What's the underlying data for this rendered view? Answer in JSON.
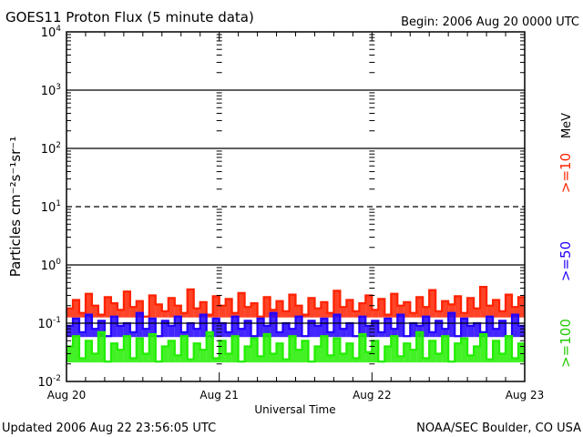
{
  "chart_data": {
    "type": "line",
    "title": "GOES11 Proton Flux (5 minute data)",
    "begin_label": "Begin: 2006 Aug 20 0000 UTC",
    "xlabel": "Universal Time",
    "ylabel": "Particles cm⁻²s⁻¹sr⁻¹",
    "yscale": "log",
    "ylim": [
      0.01,
      10000
    ],
    "xlim_days": [
      0,
      3
    ],
    "y_ticks": [
      {
        "base": "10",
        "exp": "4",
        "value": 10000
      },
      {
        "base": "10",
        "exp": "3",
        "value": 1000
      },
      {
        "base": "10",
        "exp": "2",
        "value": 100
      },
      {
        "base": "10",
        "exp": "1",
        "value": 10
      },
      {
        "base": "10",
        "exp": "0",
        "value": 1
      },
      {
        "base": "10",
        "exp": "-1",
        "value": 0.1
      },
      {
        "base": "10",
        "exp": "-2",
        "value": 0.01
      }
    ],
    "x_ticks": [
      {
        "label": "Aug 20",
        "day": 0
      },
      {
        "label": "Aug 21",
        "day": 1
      },
      {
        "label": "Aug 22",
        "day": 2
      },
      {
        "label": "Aug 23",
        "day": 3
      }
    ],
    "grid": true,
    "legend_placement": "right, vertical",
    "legend_unit": "MeV",
    "x_step_hours": 1,
    "series": [
      {
        "name": ">=10",
        "color": "#ff2200",
        "values": [
          0.18,
          0.25,
          0.15,
          0.32,
          0.2,
          0.14,
          0.28,
          0.22,
          0.17,
          0.35,
          0.19,
          0.24,
          0.13,
          0.3,
          0.21,
          0.16,
          0.27,
          0.2,
          0.15,
          0.38,
          0.18,
          0.23,
          0.14,
          0.29,
          0.2,
          0.26,
          0.15,
          0.33,
          0.19,
          0.22,
          0.13,
          0.28,
          0.17,
          0.24,
          0.16,
          0.31,
          0.2,
          0.14,
          0.27,
          0.18,
          0.23,
          0.15,
          0.36,
          0.19,
          0.25,
          0.16,
          0.22,
          0.3,
          0.17,
          0.26,
          0.14,
          0.32,
          0.2,
          0.23,
          0.15,
          0.28,
          0.19,
          0.37,
          0.16,
          0.24,
          0.21,
          0.29,
          0.15,
          0.27,
          0.18,
          0.42,
          0.2,
          0.25,
          0.16,
          0.31,
          0.19,
          0.28
        ]
      },
      {
        "name": ">=50",
        "color": "#2200ff",
        "values": [
          0.09,
          0.12,
          0.07,
          0.14,
          0.08,
          0.11,
          0.06,
          0.13,
          0.09,
          0.1,
          0.07,
          0.15,
          0.08,
          0.12,
          0.06,
          0.11,
          0.09,
          0.13,
          0.07,
          0.1,
          0.08,
          0.14,
          0.06,
          0.12,
          0.1,
          0.07,
          0.13,
          0.08,
          0.11,
          0.06,
          0.12,
          0.09,
          0.15,
          0.07,
          0.1,
          0.08,
          0.13,
          0.06,
          0.11,
          0.09,
          0.12,
          0.07,
          0.14,
          0.08,
          0.1,
          0.06,
          0.13,
          0.09,
          0.11,
          0.07,
          0.12,
          0.08,
          0.14,
          0.06,
          0.1,
          0.09,
          0.13,
          0.07,
          0.11,
          0.08,
          0.15,
          0.06,
          0.12,
          0.09,
          0.1,
          0.07,
          0.13,
          0.08,
          0.11,
          0.06,
          0.14,
          0.09
        ]
      },
      {
        "name": ">=100",
        "color": "#22ee00",
        "values": [
          0.04,
          0.06,
          0.025,
          0.05,
          0.03,
          0.07,
          0.022,
          0.045,
          0.035,
          0.06,
          0.025,
          0.055,
          0.03,
          0.065,
          0.022,
          0.04,
          0.05,
          0.028,
          0.06,
          0.024,
          0.045,
          0.035,
          0.07,
          0.025,
          0.05,
          0.03,
          0.06,
          0.022,
          0.04,
          0.055,
          0.027,
          0.065,
          0.03,
          0.045,
          0.024,
          0.06,
          0.035,
          0.05,
          0.022,
          0.04,
          0.06,
          0.028,
          0.055,
          0.03,
          0.045,
          0.025,
          0.065,
          0.032,
          0.05,
          0.022,
          0.04,
          0.06,
          0.027,
          0.045,
          0.035,
          0.07,
          0.025,
          0.05,
          0.03,
          0.06,
          0.022,
          0.045,
          0.055,
          0.028,
          0.04,
          0.065,
          0.024,
          0.05,
          0.03,
          0.06,
          0.025,
          0.045
        ]
      }
    ]
  },
  "footer": {
    "updated": "Updated 2006 Aug 22 23:56:05 UTC",
    "credit": "NOAA/SEC Boulder, CO USA"
  }
}
